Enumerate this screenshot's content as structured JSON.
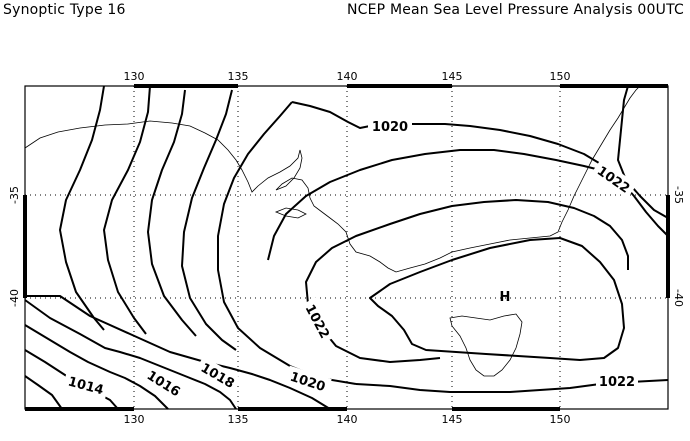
{
  "header": {
    "left_title": "Synoptic Type 16",
    "right_title": "NCEP Mean Sea Level Pressure Analysis 00UTC"
  },
  "map": {
    "lon_ticks": [
      "130",
      "135",
      "140",
      "145",
      "150"
    ],
    "lat_ticks": [
      "-35",
      "-40"
    ],
    "isobar_labels": [
      "1020",
      "1022",
      "1022",
      "1022",
      "1014",
      "1016",
      "1018",
      "1020"
    ],
    "high_marker": "H",
    "colors": {
      "isobar": "#000000",
      "coastline": "#000000",
      "grid": "#000000",
      "background": "#ffffff"
    }
  }
}
